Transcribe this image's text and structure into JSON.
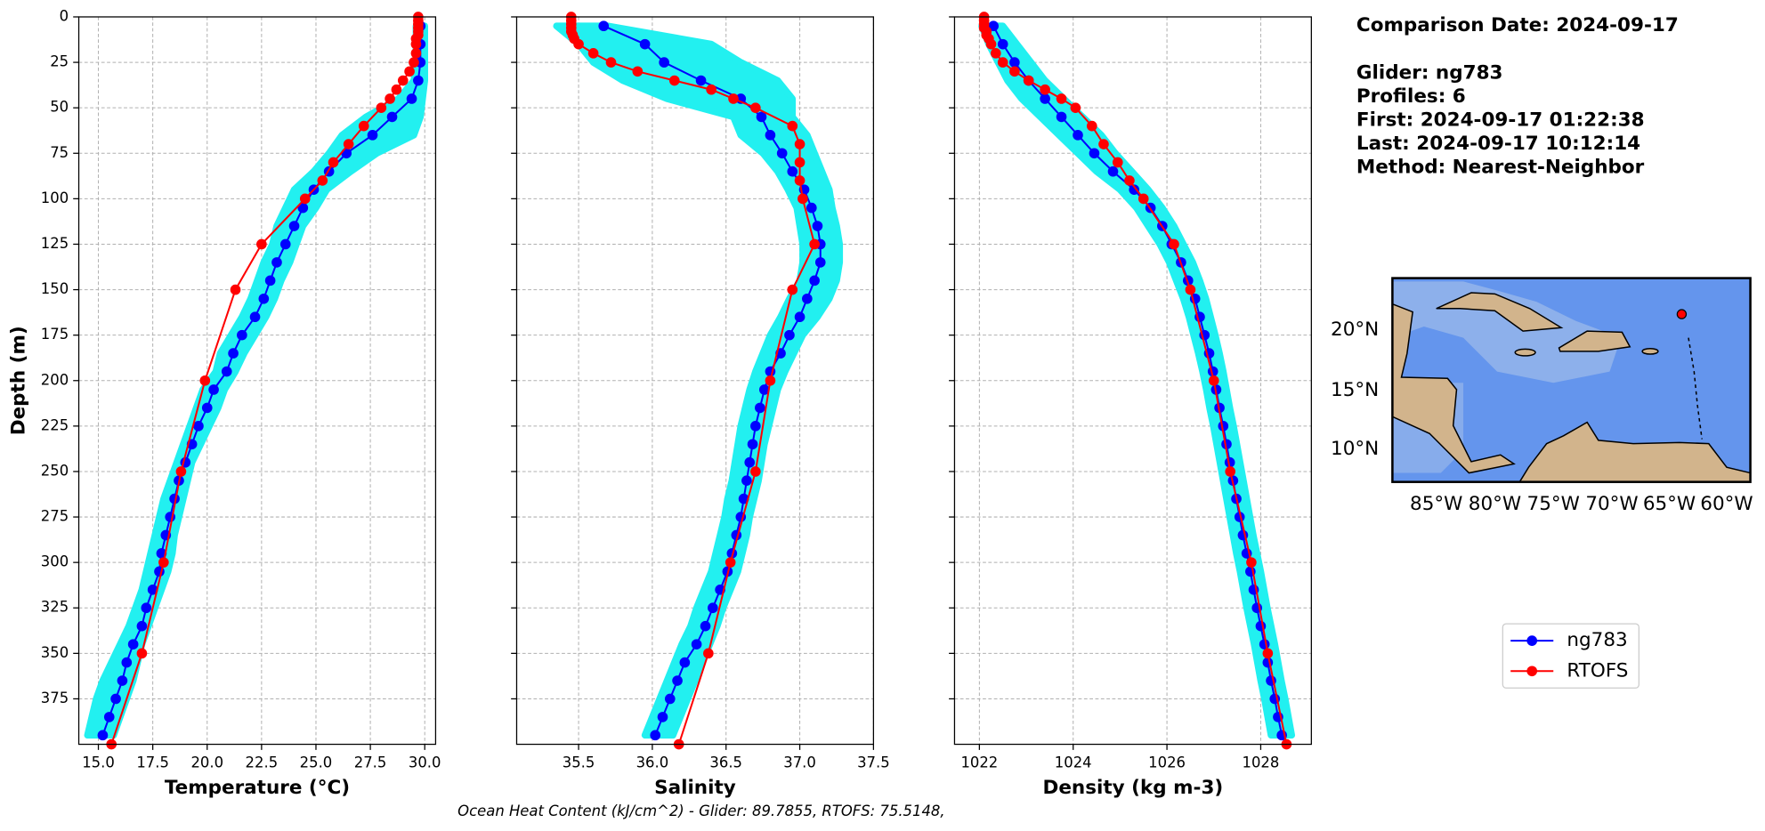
{
  "chart_data": [
    {
      "type": "line",
      "xlabel": "Temperature (°C)",
      "ylabel": "Depth (m)",
      "xlim": [
        14.1,
        30.5
      ],
      "xticks": [
        {
          "value": 15,
          "label": "15.0"
        },
        17.5,
        {
          "value": 20,
          "label": "20.0"
        },
        22.5,
        {
          "value": 25,
          "label": "25.0"
        },
        27.5,
        {
          "value": 30,
          "label": "30.0"
        }
      ],
      "ylim": [
        400,
        0
      ],
      "yticks": [
        0,
        25,
        50,
        75,
        100,
        125,
        150,
        175,
        200,
        225,
        250,
        275,
        300,
        325,
        350,
        375
      ],
      "ytick_labels": true,
      "grid": true,
      "envelope": {
        "color": "#22f0f0",
        "y": [
          5,
          15,
          25,
          35,
          45,
          55,
          65,
          75,
          85,
          95,
          105,
          115,
          125,
          135,
          145,
          155,
          165,
          175,
          185,
          195,
          205,
          215,
          225,
          235,
          245,
          255,
          265,
          275,
          285,
          295,
          305,
          315,
          325,
          335,
          345,
          355,
          365,
          375,
          385,
          395
        ],
        "lo": [
          29.6,
          29.6,
          29.6,
          29.5,
          28.8,
          27.3,
          26.2,
          25.6,
          24.9,
          24.0,
          23.6,
          23.2,
          23.0,
          22.6,
          22.3,
          22.0,
          21.6,
          21.1,
          20.6,
          20.4,
          19.8,
          19.5,
          19.2,
          18.9,
          18.6,
          18.3,
          18.0,
          17.8,
          17.6,
          17.4,
          17.2,
          17.0,
          16.7,
          16.4,
          16.0,
          15.6,
          15.2,
          14.9,
          14.7,
          14.5
        ],
        "hi": [
          30.0,
          30.0,
          30.0,
          30.0,
          29.9,
          29.8,
          29.5,
          27.8,
          26.6,
          25.5,
          25.0,
          24.4,
          24.1,
          23.8,
          23.4,
          23.1,
          22.7,
          22.2,
          21.7,
          21.3,
          20.8,
          20.5,
          20.1,
          19.7,
          19.3,
          19.1,
          18.9,
          18.7,
          18.5,
          18.4,
          18.2,
          17.9,
          17.6,
          17.3,
          17.0,
          16.8,
          16.6,
          16.3,
          16.0,
          15.7
        ]
      },
      "series": [
        {
          "name": "ng783",
          "color": "#0000ff",
          "y": [
            5,
            15,
            25,
            35,
            45,
            55,
            65,
            75,
            85,
            95,
            105,
            115,
            125,
            135,
            145,
            155,
            165,
            175,
            185,
            195,
            205,
            215,
            225,
            235,
            245,
            255,
            265,
            275,
            285,
            295,
            305,
            315,
            325,
            335,
            345,
            355,
            365,
            375,
            385,
            395
          ],
          "x": [
            29.8,
            29.8,
            29.8,
            29.7,
            29.4,
            28.5,
            27.6,
            26.4,
            25.6,
            24.9,
            24.4,
            24.0,
            23.6,
            23.2,
            22.9,
            22.6,
            22.2,
            21.6,
            21.2,
            20.9,
            20.3,
            20.0,
            19.6,
            19.3,
            19.0,
            18.7,
            18.5,
            18.3,
            18.1,
            17.9,
            17.8,
            17.5,
            17.2,
            17.0,
            16.6,
            16.3,
            16.1,
            15.8,
            15.5,
            15.2
          ]
        },
        {
          "name": "RTOFS",
          "color": "#ff0000",
          "y": [
            0,
            2,
            4,
            6,
            8,
            10,
            12,
            15,
            20,
            25,
            30,
            35,
            40,
            45,
            50,
            60,
            70,
            80,
            90,
            100,
            125,
            150,
            200,
            250,
            300,
            350,
            400
          ],
          "x": [
            29.7,
            29.7,
            29.7,
            29.7,
            29.7,
            29.7,
            29.6,
            29.6,
            29.6,
            29.5,
            29.3,
            29.0,
            28.7,
            28.4,
            28.0,
            27.2,
            26.5,
            25.8,
            25.3,
            24.5,
            22.5,
            21.3,
            19.9,
            18.8,
            18.0,
            17.0,
            15.6
          ]
        }
      ]
    },
    {
      "type": "line",
      "xlabel": "Salinity",
      "xlim": [
        35.08,
        37.5
      ],
      "xticks": [
        35.5,
        {
          "value": 36,
          "label": "36.0"
        },
        36.5,
        {
          "value": 37,
          "label": "37.0"
        },
        37.5
      ],
      "ylim": [
        400,
        0
      ],
      "yticks": [
        0,
        25,
        50,
        75,
        100,
        125,
        150,
        175,
        200,
        225,
        250,
        275,
        300,
        325,
        350,
        375
      ],
      "ytick_labels": false,
      "grid": true,
      "envelope": {
        "color": "#22f0f0",
        "y": [
          5,
          15,
          25,
          35,
          45,
          55,
          65,
          75,
          85,
          95,
          105,
          115,
          125,
          135,
          145,
          155,
          165,
          175,
          185,
          195,
          205,
          215,
          225,
          235,
          245,
          255,
          265,
          275,
          285,
          295,
          305,
          315,
          325,
          335,
          345,
          355,
          365,
          375,
          385,
          395
        ],
        "lo": [
          35.35,
          35.5,
          35.6,
          35.8,
          36.1,
          36.55,
          36.6,
          36.75,
          36.85,
          36.92,
          36.98,
          37.0,
          37.02,
          37.02,
          37.0,
          36.93,
          36.87,
          36.8,
          36.75,
          36.7,
          36.66,
          36.63,
          36.6,
          36.58,
          36.56,
          36.54,
          36.51,
          36.49,
          36.46,
          36.43,
          36.4,
          36.35,
          36.3,
          36.26,
          36.2,
          36.15,
          36.1,
          36.05,
          36.0,
          35.95
        ],
        "hi": [
          35.7,
          36.4,
          36.6,
          36.85,
          36.95,
          36.95,
          37.05,
          37.1,
          37.15,
          37.2,
          37.22,
          37.25,
          37.27,
          37.27,
          37.25,
          37.2,
          37.12,
          37.02,
          36.96,
          36.9,
          36.85,
          36.82,
          36.79,
          36.76,
          36.74,
          36.72,
          36.69,
          36.66,
          36.64,
          36.61,
          36.58,
          36.53,
          36.48,
          36.44,
          36.39,
          36.34,
          36.29,
          36.24,
          36.19,
          36.14
        ]
      },
      "series": [
        {
          "name": "ng783",
          "color": "#0000ff",
          "y": [
            5,
            15,
            25,
            35,
            45,
            55,
            65,
            75,
            85,
            95,
            105,
            115,
            125,
            135,
            145,
            155,
            165,
            175,
            185,
            195,
            205,
            215,
            225,
            235,
            245,
            255,
            265,
            275,
            285,
            295,
            305,
            315,
            325,
            335,
            345,
            355,
            365,
            375,
            385,
            395
          ],
          "x": [
            35.67,
            35.95,
            36.08,
            36.33,
            36.6,
            36.74,
            36.8,
            36.88,
            36.95,
            37.03,
            37.08,
            37.12,
            37.14,
            37.14,
            37.1,
            37.05,
            37.0,
            36.93,
            36.87,
            36.8,
            36.76,
            36.73,
            36.7,
            36.68,
            36.66,
            36.64,
            36.62,
            36.6,
            36.57,
            36.54,
            36.51,
            36.46,
            36.41,
            36.36,
            36.3,
            36.22,
            36.17,
            36.12,
            36.07,
            36.02
          ]
        },
        {
          "name": "RTOFS",
          "color": "#ff0000",
          "y": [
            0,
            2,
            4,
            6,
            8,
            10,
            12,
            15,
            20,
            25,
            30,
            35,
            40,
            45,
            50,
            60,
            70,
            80,
            90,
            100,
            125,
            150,
            200,
            250,
            300,
            350,
            400
          ],
          "x": [
            35.45,
            35.45,
            35.45,
            35.45,
            35.45,
            35.46,
            35.47,
            35.5,
            35.6,
            35.72,
            35.9,
            36.15,
            36.4,
            36.55,
            36.7,
            36.95,
            37.0,
            37.0,
            37.0,
            37.02,
            37.1,
            36.95,
            36.8,
            36.7,
            36.53,
            36.38,
            36.18
          ]
        }
      ]
    },
    {
      "type": "line",
      "xlabel": "Density (kg m-3)",
      "xlim": [
        1021.47,
        1029.08
      ],
      "xticks": [
        1022,
        1024,
        1026,
        1028
      ],
      "ylim": [
        400,
        0
      ],
      "yticks": [
        0,
        25,
        50,
        75,
        100,
        125,
        150,
        175,
        200,
        225,
        250,
        275,
        300,
        325,
        350,
        375
      ],
      "ytick_labels": false,
      "grid": true,
      "envelope": {
        "color": "#22f0f0",
        "y": [
          5,
          15,
          25,
          35,
          45,
          55,
          65,
          75,
          85,
          95,
          105,
          115,
          125,
          135,
          145,
          155,
          165,
          175,
          185,
          195,
          205,
          215,
          225,
          235,
          245,
          255,
          265,
          275,
          285,
          295,
          305,
          315,
          325,
          335,
          345,
          355,
          365,
          375,
          385,
          395
        ],
        "lo": [
          1022.05,
          1022.2,
          1022.4,
          1022.6,
          1022.9,
          1023.3,
          1023.7,
          1024.1,
          1024.5,
          1025.0,
          1025.35,
          1025.6,
          1025.85,
          1026.05,
          1026.2,
          1026.35,
          1026.47,
          1026.57,
          1026.67,
          1026.76,
          1026.84,
          1026.91,
          1026.99,
          1027.06,
          1027.13,
          1027.2,
          1027.27,
          1027.34,
          1027.41,
          1027.48,
          1027.56,
          1027.63,
          1027.7,
          1027.78,
          1027.86,
          1027.93,
          1028.0,
          1028.08,
          1028.15,
          1028.22
        ],
        "hi": [
          1022.5,
          1022.8,
          1023.1,
          1023.4,
          1023.8,
          1024.2,
          1024.6,
          1024.9,
          1025.25,
          1025.6,
          1025.9,
          1026.15,
          1026.35,
          1026.55,
          1026.7,
          1026.83,
          1026.93,
          1027.03,
          1027.12,
          1027.2,
          1027.27,
          1027.34,
          1027.42,
          1027.49,
          1027.56,
          1027.63,
          1027.7,
          1027.77,
          1027.84,
          1027.92,
          1028.0,
          1028.07,
          1028.14,
          1028.22,
          1028.3,
          1028.37,
          1028.44,
          1028.52,
          1028.59,
          1028.66
        ]
      },
      "series": [
        {
          "name": "ng783",
          "color": "#0000ff",
          "y": [
            5,
            15,
            25,
            35,
            45,
            55,
            65,
            75,
            85,
            95,
            105,
            115,
            125,
            135,
            145,
            155,
            165,
            175,
            185,
            195,
            205,
            215,
            225,
            235,
            245,
            255,
            265,
            275,
            285,
            295,
            305,
            315,
            325,
            335,
            345,
            355,
            365,
            375,
            385,
            395
          ],
          "x": [
            1022.3,
            1022.5,
            1022.75,
            1023.05,
            1023.4,
            1023.75,
            1024.1,
            1024.45,
            1024.85,
            1025.3,
            1025.65,
            1025.9,
            1026.1,
            1026.3,
            1026.45,
            1026.6,
            1026.7,
            1026.8,
            1026.9,
            1026.98,
            1027.05,
            1027.12,
            1027.2,
            1027.27,
            1027.34,
            1027.41,
            1027.48,
            1027.55,
            1027.62,
            1027.7,
            1027.78,
            1027.85,
            1027.92,
            1028.0,
            1028.08,
            1028.15,
            1028.22,
            1028.3,
            1028.37,
            1028.45
          ]
        },
        {
          "name": "RTOFS",
          "color": "#ff0000",
          "y": [
            0,
            2,
            4,
            6,
            8,
            10,
            12,
            15,
            20,
            25,
            30,
            35,
            40,
            45,
            50,
            60,
            70,
            80,
            90,
            100,
            125,
            150,
            200,
            250,
            300,
            350,
            400
          ],
          "x": [
            1022.1,
            1022.1,
            1022.1,
            1022.1,
            1022.15,
            1022.15,
            1022.2,
            1022.25,
            1022.35,
            1022.5,
            1022.75,
            1023.05,
            1023.4,
            1023.75,
            1024.05,
            1024.4,
            1024.65,
            1024.95,
            1025.2,
            1025.5,
            1026.15,
            1026.5,
            1027.0,
            1027.35,
            1027.8,
            1028.15,
            1028.55
          ]
        }
      ]
    }
  ],
  "info": [
    "Comparison Date: 2024-09-17",
    "Glider: ng783",
    "Profiles: 6",
    "First: 2024-09-17 01:22:38",
    "Last: 2024-09-17 10:12:14",
    "Method: Nearest-Neighbor"
  ],
  "map": {
    "lat_labels": [
      "20°N",
      "15°N",
      "10°N"
    ],
    "lon_labels": [
      "85°W",
      "80°W",
      "75°W",
      "70°W",
      "65°W",
      "60°W"
    ]
  },
  "footer": "Ocean Heat Content (kJ/cm^2) - Glider: 89.7855,  RTOFS: 75.5148,"
}
